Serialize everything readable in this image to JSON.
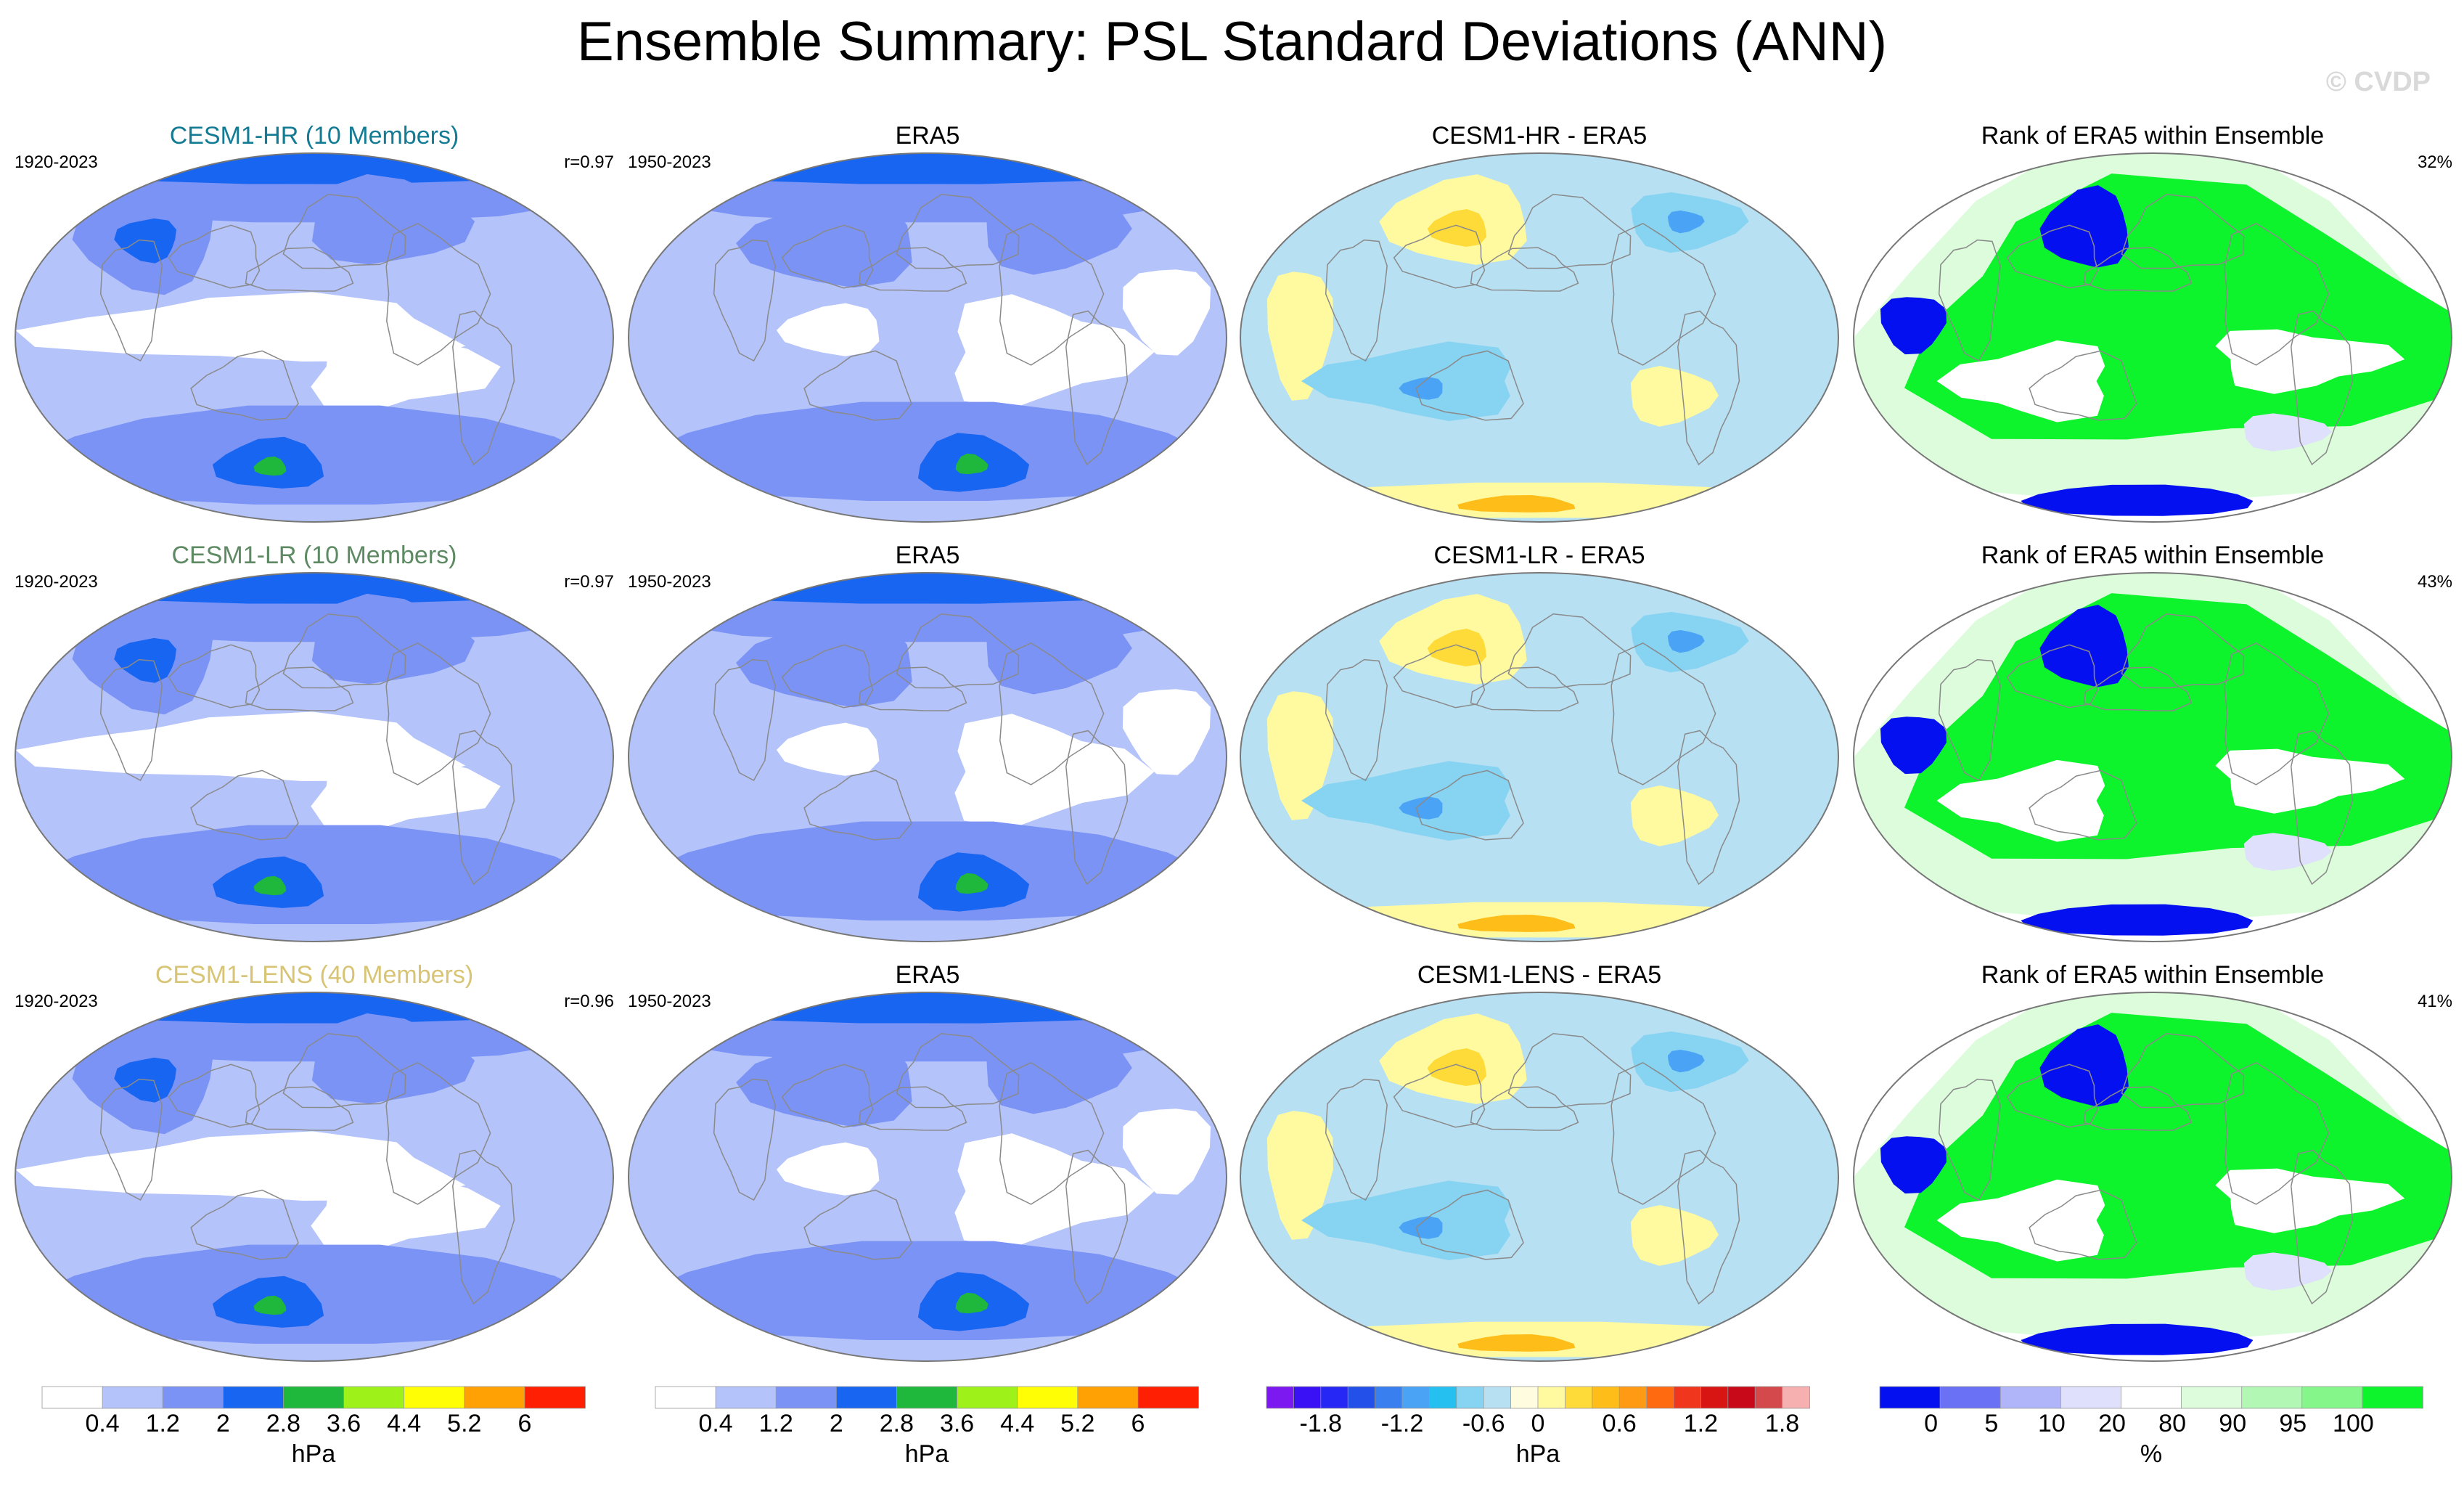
{
  "title": "Ensemble Summary: PSL Standard Deviations (ANN)",
  "watermark": "© CVDP",
  "rows": [
    {
      "panels": [
        {
          "title": "CESM1-HR (10 Members)",
          "title_color": "#137b94",
          "left": "1920-2023",
          "right": "r=0.97",
          "kind": "model"
        },
        {
          "title": "ERA5",
          "title_color": "#000000",
          "left": "1950-2023",
          "right": "",
          "kind": "obs"
        },
        {
          "title": "CESM1-HR - ERA5",
          "title_color": "#000000",
          "left": "",
          "right": "",
          "kind": "diff"
        },
        {
          "title": "Rank of ERA5 within Ensemble",
          "title_color": "#000000",
          "left": "",
          "right": "32%",
          "kind": "rank"
        }
      ]
    },
    {
      "panels": [
        {
          "title": "CESM1-LR (10 Members)",
          "title_color": "#5d8a62",
          "left": "1920-2023",
          "right": "r=0.97",
          "kind": "model"
        },
        {
          "title": "ERA5",
          "title_color": "#000000",
          "left": "1950-2023",
          "right": "",
          "kind": "obs"
        },
        {
          "title": "CESM1-LR - ERA5",
          "title_color": "#000000",
          "left": "",
          "right": "",
          "kind": "diff"
        },
        {
          "title": "Rank of ERA5 within Ensemble",
          "title_color": "#000000",
          "left": "",
          "right": "43%",
          "kind": "rank"
        }
      ]
    },
    {
      "panels": [
        {
          "title": "CESM1-LENS (40 Members)",
          "title_color": "#d7c474",
          "left": "1920-2023",
          "right": "r=0.96",
          "kind": "model"
        },
        {
          "title": "ERA5",
          "title_color": "#000000",
          "left": "1950-2023",
          "right": "",
          "kind": "obs"
        },
        {
          "title": "CESM1-LENS - ERA5",
          "title_color": "#000000",
          "left": "",
          "right": "",
          "kind": "diff"
        },
        {
          "title": "Rank of ERA5 within Ensemble",
          "title_color": "#000000",
          "left": "",
          "right": "41%",
          "kind": "rank"
        }
      ]
    }
  ],
  "colorbars": [
    {
      "name": "sd-model",
      "unit": "hPa",
      "colors": [
        "#ffffff",
        "#b4c3fa",
        "#7b93f5",
        "#1765f0",
        "#1fb83c",
        "#9ef21a",
        "#fffe05",
        "#ffa104",
        "#ff1f03"
      ],
      "labels": [
        "0.4",
        "1.2",
        "2",
        "2.8",
        "3.6",
        "4.4",
        "5.2",
        "6"
      ]
    },
    {
      "name": "sd-obs",
      "unit": "hPa",
      "colors": [
        "#ffffff",
        "#b4c3fa",
        "#7b93f5",
        "#1765f0",
        "#1fb83c",
        "#9ef21a",
        "#fffe05",
        "#ffa104",
        "#ff1f03"
      ],
      "labels": [
        "0.4",
        "1.2",
        "2",
        "2.8",
        "3.6",
        "4.4",
        "5.2",
        "6"
      ]
    },
    {
      "name": "diff",
      "unit": "hPa",
      "colors": [
        "#7c18f0",
        "#3a10f5",
        "#2626f5",
        "#2350e9",
        "#3a7ff0",
        "#4aa3f4",
        "#26c0f0",
        "#86d3f2",
        "#b7e0f3",
        "#fffcdf",
        "#fffaa0",
        "#ffdb3a",
        "#ffbd1a",
        "#ff9a14",
        "#ff6a10",
        "#f0361c",
        "#d91513",
        "#c8091a",
        "#d44a4c",
        "#f6b0b0"
      ],
      "labels": [
        "-1.8",
        "-1.2",
        "-0.6",
        "0",
        "0.6",
        "1.2",
        "1.8"
      ]
    },
    {
      "name": "rank",
      "unit": "%",
      "colors": [
        "#0510f0",
        "#6a71f5",
        "#b0b4f8",
        "#dfe0fc",
        "#ffffff",
        "#dcfcdc",
        "#b2f8b4",
        "#85f78a",
        "#0ef42c"
      ],
      "labels": [
        "0",
        "5",
        "10",
        "20",
        "80",
        "90",
        "95",
        "100"
      ]
    }
  ],
  "chart_data": [
    {
      "type": "heatmap",
      "title": "CESM1-HR (10 Members)",
      "period": "1920-2023",
      "pattern_correlation": 0.97,
      "unit": "hPa",
      "contour_levels": [
        0.4,
        1.2,
        2,
        2.8,
        3.6,
        4.4,
        5.2,
        6
      ]
    },
    {
      "type": "heatmap",
      "title": "ERA5",
      "period": "1950-2023",
      "unit": "hPa",
      "contour_levels": [
        0.4,
        1.2,
        2,
        2.8,
        3.6,
        4.4,
        5.2,
        6
      ]
    },
    {
      "type": "heatmap",
      "title": "CESM1-HR - ERA5",
      "unit": "hPa",
      "contour_levels": [
        -1.8,
        -1.2,
        -0.6,
        0,
        0.6,
        1.2,
        1.8
      ]
    },
    {
      "type": "heatmap",
      "title": "Rank of ERA5 within Ensemble",
      "area_fraction_in_bounds": "32%",
      "unit": "%",
      "contour_levels": [
        0,
        5,
        10,
        20,
        80,
        90,
        95,
        100
      ]
    },
    {
      "type": "heatmap",
      "title": "CESM1-LR (10 Members)",
      "period": "1920-2023",
      "pattern_correlation": 0.97,
      "unit": "hPa"
    },
    {
      "type": "heatmap",
      "title": "ERA5",
      "period": "1950-2023",
      "unit": "hPa"
    },
    {
      "type": "heatmap",
      "title": "CESM1-LR - ERA5",
      "unit": "hPa"
    },
    {
      "type": "heatmap",
      "title": "Rank of ERA5 within Ensemble",
      "area_fraction_in_bounds": "43%",
      "unit": "%"
    },
    {
      "type": "heatmap",
      "title": "CESM1-LENS (40 Members)",
      "period": "1920-2023",
      "pattern_correlation": 0.96,
      "unit": "hPa"
    },
    {
      "type": "heatmap",
      "title": "ERA5",
      "period": "1950-2023",
      "unit": "hPa"
    },
    {
      "type": "heatmap",
      "title": "CESM1-LENS - ERA5",
      "unit": "hPa"
    },
    {
      "type": "heatmap",
      "title": "Rank of ERA5 within Ensemble",
      "area_fraction_in_bounds": "41%",
      "unit": "%"
    }
  ]
}
